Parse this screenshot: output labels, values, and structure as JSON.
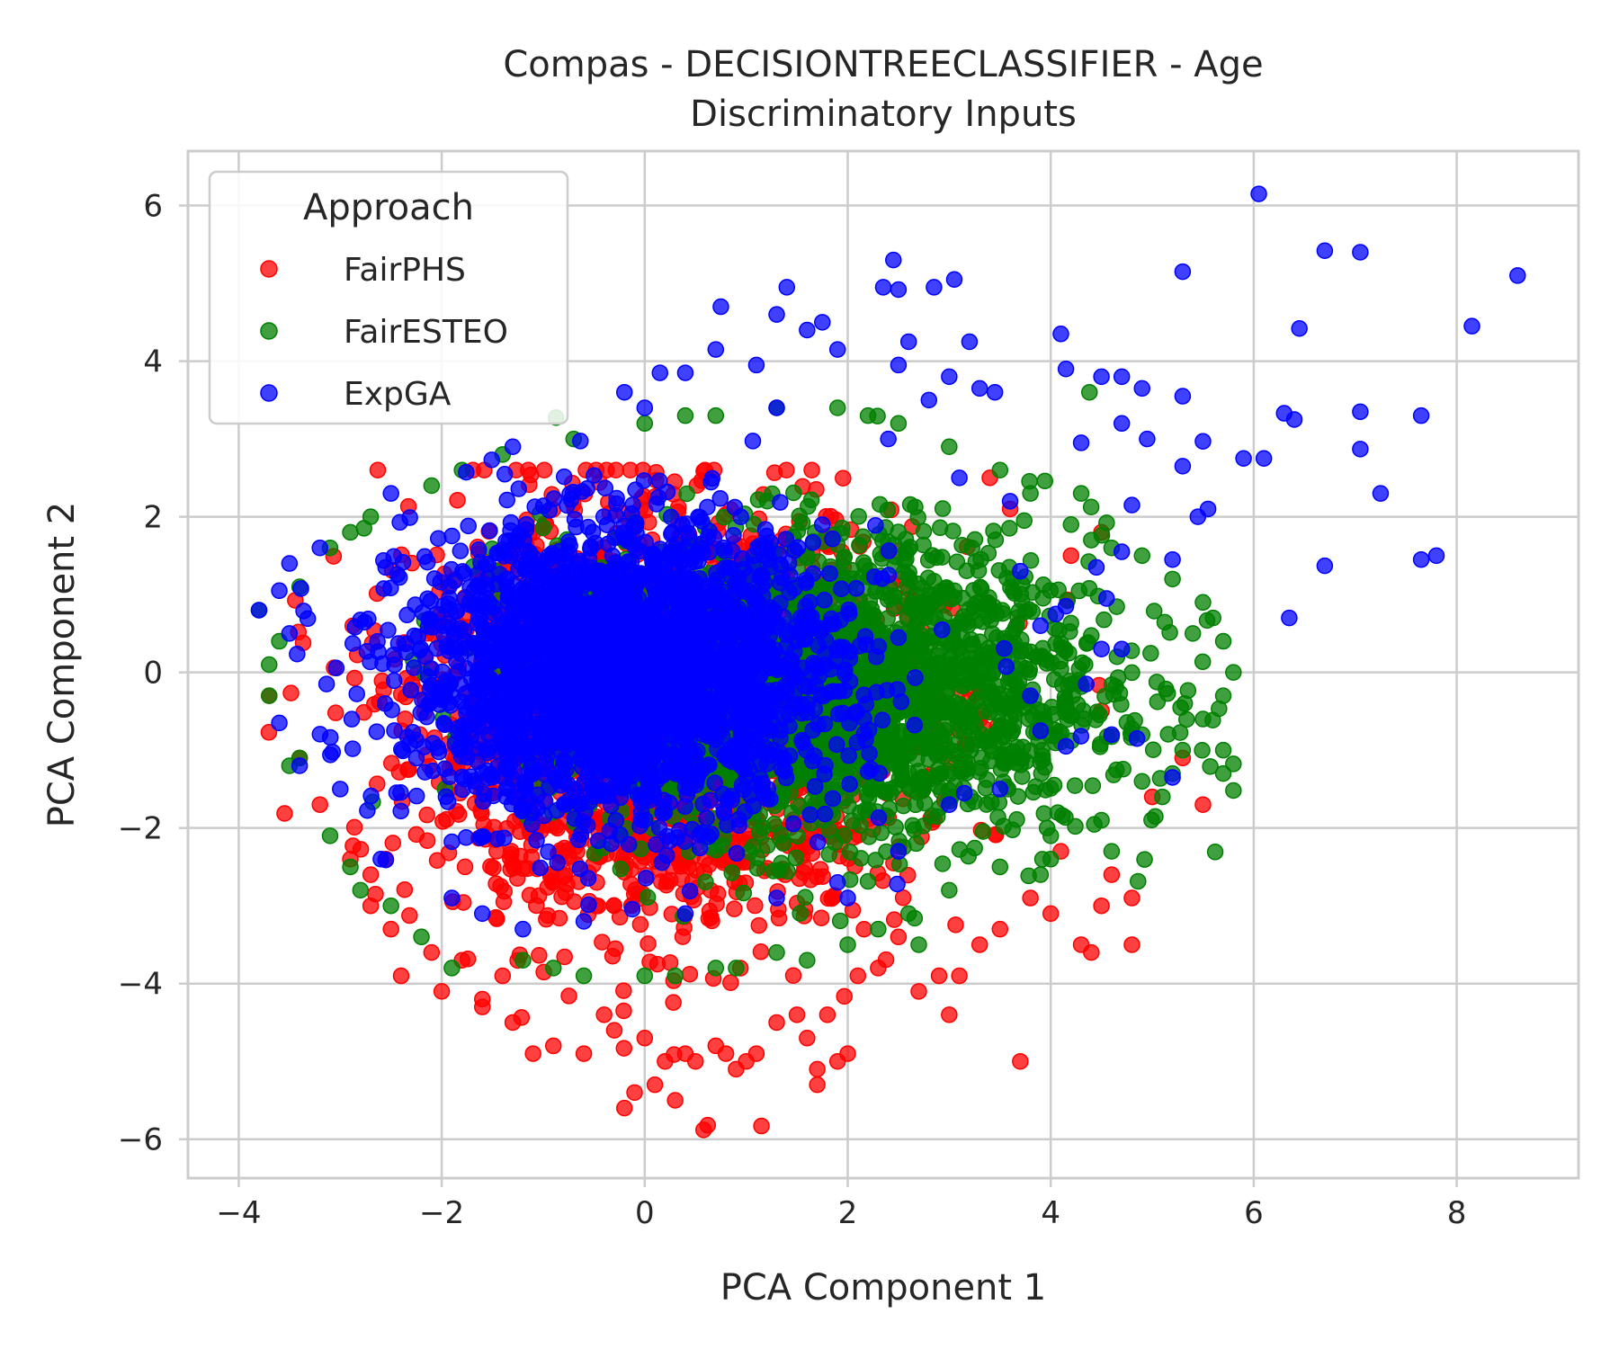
{
  "chart_data": {
    "type": "scatter",
    "title": "Compas - DECISIONTREECLASSIFIER - Age",
    "subtitle": "Discriminatory Inputs",
    "xlabel": "PCA Component 1",
    "ylabel": "PCA Component 2",
    "xlim": [
      -4.5,
      9.2
    ],
    "ylim": [
      -6.5,
      6.7
    ],
    "xticks": [
      -4,
      -2,
      0,
      2,
      4,
      6,
      8
    ],
    "yticks": [
      -6,
      -4,
      -2,
      0,
      2,
      4,
      6
    ],
    "xtick_labels": [
      "−4",
      "−2",
      "0",
      "2",
      "4",
      "6",
      "8"
    ],
    "ytick_labels": [
      "−6",
      "−4",
      "−2",
      "0",
      "2",
      "4",
      "6"
    ],
    "grid": true,
    "legend": {
      "title": "Approach",
      "placement": "upper-left",
      "entries": [
        "FairPHS",
        "FairESTEO",
        "ExpGA"
      ]
    },
    "series": [
      {
        "name": "FairPHS",
        "color": "#ff0000",
        "cluster": {
          "center": [
            0.2,
            -0.6
          ],
          "spread": [
            1.6,
            1.7
          ],
          "bounds_x": [
            -3.8,
            5.6
          ],
          "bounds_y": [
            -5.9,
            2.6
          ]
        },
        "points": [
          [
            -3.7,
            -0.3
          ],
          [
            -3.4,
            -1.1
          ],
          [
            -3.2,
            -1.7
          ],
          [
            -2.9,
            -2.4
          ],
          [
            -2.7,
            -2.6
          ],
          [
            -2.7,
            -3.0
          ],
          [
            -2.5,
            -3.3
          ],
          [
            -2.4,
            -3.9
          ],
          [
            -2.1,
            -3.6
          ],
          [
            -2.0,
            -4.1
          ],
          [
            -1.8,
            -3.7
          ],
          [
            -1.6,
            -4.2
          ],
          [
            -1.4,
            -3.9
          ],
          [
            -1.3,
            -4.5
          ],
          [
            -1.1,
            -4.9
          ],
          [
            -0.9,
            -4.8
          ],
          [
            -0.6,
            -4.9
          ],
          [
            -0.4,
            -4.4
          ],
          [
            -0.3,
            -4.6
          ],
          [
            -0.2,
            -5.6
          ],
          [
            -0.1,
            -5.4
          ],
          [
            0.0,
            -4.7
          ],
          [
            0.1,
            -5.3
          ],
          [
            0.2,
            -5.0
          ],
          [
            0.3,
            -5.5
          ],
          [
            0.4,
            -4.9
          ],
          [
            0.5,
            -5.0
          ],
          [
            0.58,
            -5.88
          ],
          [
            0.62,
            -5.82
          ],
          [
            0.7,
            -4.8
          ],
          [
            0.8,
            -4.9
          ],
          [
            0.9,
            -5.1
          ],
          [
            1.1,
            -4.9
          ],
          [
            1.15,
            -5.83
          ],
          [
            1.3,
            -4.5
          ],
          [
            1.5,
            -4.4
          ],
          [
            1.6,
            -4.7
          ],
          [
            1.7,
            -5.3
          ],
          [
            1.8,
            -4.4
          ],
          [
            1.9,
            -5.0
          ],
          [
            2.0,
            -4.9
          ],
          [
            2.1,
            -3.9
          ],
          [
            2.3,
            -3.8
          ],
          [
            2.5,
            -3.4
          ],
          [
            2.7,
            -4.1
          ],
          [
            2.9,
            -3.9
          ],
          [
            3.0,
            -4.4
          ],
          [
            3.1,
            -3.9
          ],
          [
            3.3,
            -3.5
          ],
          [
            3.5,
            -3.3
          ],
          [
            3.7,
            -5.0
          ],
          [
            3.8,
            -2.9
          ],
          [
            4.0,
            -3.1
          ],
          [
            4.1,
            -2.3
          ],
          [
            4.3,
            -3.5
          ],
          [
            4.4,
            -3.6
          ],
          [
            4.5,
            -3.0
          ],
          [
            4.6,
            -2.6
          ],
          [
            4.8,
            -3.5
          ],
          [
            4.8,
            -2.9
          ],
          [
            5.0,
            -1.6
          ],
          [
            5.3,
            -1.1
          ],
          [
            5.5,
            -1.7
          ],
          [
            4.5,
            1.8
          ],
          [
            4.2,
            1.5
          ],
          [
            3.6,
            2.1
          ],
          [
            3.4,
            2.5
          ],
          [
            1.7,
            -5.1
          ],
          [
            1.0,
            -5.0
          ],
          [
            -1.6,
            -4.3
          ]
        ]
      },
      {
        "name": "FairESTEO",
        "color": "#008000",
        "cluster": {
          "center": [
            1.8,
            -0.2
          ],
          "spread": [
            1.8,
            1.3
          ],
          "bounds_x": [
            -3.8,
            5.8
          ],
          "bounds_y": [
            -4.0,
            3.6
          ]
        },
        "points": [
          [
            -3.8,
            0.8
          ],
          [
            -3.7,
            0.1
          ],
          [
            -3.7,
            -0.3
          ],
          [
            -3.4,
            -1.1
          ],
          [
            -3.1,
            -2.1
          ],
          [
            -2.9,
            -2.5
          ],
          [
            -2.5,
            -3.0
          ],
          [
            -2.2,
            -3.4
          ],
          [
            -1.9,
            -3.8
          ],
          [
            -1.2,
            -3.7
          ],
          [
            -0.6,
            -3.9
          ],
          [
            0.0,
            -3.9
          ],
          [
            0.7,
            -3.8
          ],
          [
            1.3,
            -3.6
          ],
          [
            2.0,
            -3.5
          ],
          [
            2.6,
            -3.1
          ],
          [
            3.0,
            -2.8
          ],
          [
            3.5,
            -2.5
          ],
          [
            4.0,
            -2.1
          ],
          [
            4.5,
            -1.9
          ],
          [
            4.9,
            -1.4
          ],
          [
            5.3,
            -1.0
          ],
          [
            5.5,
            -0.6
          ],
          [
            5.7,
            -0.3
          ],
          [
            5.8,
            0.0
          ],
          [
            5.7,
            0.4
          ],
          [
            5.6,
            0.7
          ],
          [
            5.5,
            0.9
          ],
          [
            5.2,
            1.2
          ],
          [
            4.9,
            1.5
          ],
          [
            4.4,
            1.7
          ],
          [
            4.2,
            1.9
          ],
          [
            4.3,
            2.3
          ],
          [
            3.5,
            2.6
          ],
          [
            3.0,
            2.9
          ],
          [
            2.5,
            3.2
          ],
          [
            1.9,
            3.4
          ],
          [
            1.3,
            3.4
          ],
          [
            0.7,
            3.3
          ],
          [
            0.0,
            3.2
          ],
          [
            -0.7,
            3.0
          ],
          [
            -1.4,
            2.8
          ],
          [
            -2.1,
            2.4
          ],
          [
            -2.7,
            2.0
          ],
          [
            -3.1,
            1.6
          ],
          [
            -3.4,
            1.1
          ],
          [
            5.7,
            -1.0
          ],
          [
            5.7,
            -1.3
          ],
          [
            5.2,
            -1.3
          ],
          [
            4.9,
            -0.8
          ],
          [
            4.6,
            -2.3
          ],
          [
            3.9,
            -2.6
          ],
          [
            2.7,
            -3.5
          ],
          [
            1.6,
            -3.7
          ],
          [
            0.3,
            -3.9
          ],
          [
            -0.9,
            -3.8
          ],
          [
            -2.8,
            -2.8
          ],
          [
            -3.5,
            -1.2
          ],
          [
            -3.6,
            0.4
          ],
          [
            -2.9,
            1.8
          ],
          [
            -1.8,
            2.6
          ],
          [
            0.4,
            3.3
          ],
          [
            2.2,
            3.3
          ],
          [
            3.8,
            2.3
          ],
          [
            4.6,
            1.6
          ],
          [
            5.4,
            0.5
          ],
          [
            5.1,
            -1.6
          ],
          [
            4.0,
            -2.4
          ],
          [
            2.3,
            -3.3
          ],
          [
            0.9,
            -3.8
          ]
        ]
      },
      {
        "name": "ExpGA",
        "color": "#0000ff",
        "cluster": {
          "center": [
            -0.2,
            0.0
          ],
          "spread": [
            1.4,
            1.2
          ],
          "bounds_x": [
            -3.8,
            5.2
          ],
          "bounds_y": [
            -3.5,
            3.8
          ]
        },
        "points": [
          [
            6.05,
            6.15
          ],
          [
            8.6,
            5.1
          ],
          [
            6.7,
            5.42
          ],
          [
            7.05,
            5.4
          ],
          [
            5.3,
            5.15
          ],
          [
            8.15,
            4.45
          ],
          [
            6.45,
            4.42
          ],
          [
            7.05,
            3.35
          ],
          [
            7.65,
            3.3
          ],
          [
            6.3,
            3.33
          ],
          [
            6.4,
            3.25
          ],
          [
            5.5,
            2.97
          ],
          [
            7.05,
            2.87
          ],
          [
            5.9,
            2.75
          ],
          [
            6.1,
            2.75
          ],
          [
            5.3,
            2.65
          ],
          [
            7.25,
            2.3
          ],
          [
            5.55,
            2.1
          ],
          [
            5.45,
            2.0
          ],
          [
            7.65,
            1.45
          ],
          [
            7.8,
            1.5
          ],
          [
            5.2,
            1.45
          ],
          [
            6.7,
            1.37
          ],
          [
            6.35,
            0.7
          ],
          [
            5.3,
            3.55
          ],
          [
            4.9,
            3.65
          ],
          [
            4.7,
            3.8
          ],
          [
            4.5,
            3.8
          ],
          [
            4.15,
            3.9
          ],
          [
            4.1,
            4.35
          ],
          [
            3.45,
            3.6
          ],
          [
            3.3,
            3.65
          ],
          [
            3.2,
            4.25
          ],
          [
            3.0,
            3.8
          ],
          [
            2.85,
            4.95
          ],
          [
            3.05,
            5.05
          ],
          [
            2.45,
            5.3
          ],
          [
            2.35,
            4.95
          ],
          [
            2.5,
            4.92
          ],
          [
            2.6,
            4.25
          ],
          [
            2.5,
            3.95
          ],
          [
            1.4,
            4.95
          ],
          [
            1.3,
            4.6
          ],
          [
            1.6,
            4.4
          ],
          [
            1.75,
            4.5
          ],
          [
            1.9,
            4.15
          ],
          [
            0.75,
            4.7
          ],
          [
            0.7,
            4.15
          ],
          [
            1.1,
            3.95
          ],
          [
            0.15,
            3.85
          ],
          [
            0.4,
            3.85
          ],
          [
            4.3,
            2.95
          ],
          [
            4.7,
            3.2
          ],
          [
            4.95,
            3.0
          ],
          [
            4.8,
            2.15
          ],
          [
            4.7,
            1.55
          ],
          [
            4.55,
            0.95
          ],
          [
            4.45,
            1.35
          ],
          [
            4.15,
            0.85
          ],
          [
            4.05,
            0.75
          ],
          [
            4.7,
            0.3
          ],
          [
            4.5,
            0.3
          ],
          [
            4.35,
            -0.15
          ],
          [
            4.6,
            -0.8
          ],
          [
            4.85,
            -0.85
          ],
          [
            4.15,
            -0.95
          ],
          [
            3.9,
            -0.75
          ],
          [
            5.2,
            -1.35
          ],
          [
            -3.8,
            0.8
          ],
          [
            -3.6,
            -0.65
          ],
          [
            -3.5,
            1.4
          ],
          [
            -3.6,
            1.05
          ],
          [
            -3.4,
            -1.2
          ],
          [
            -2.6,
            -2.4
          ],
          [
            -1.9,
            -2.9
          ],
          [
            -1.2,
            -3.3
          ],
          [
            -0.6,
            -3.2
          ],
          [
            0.4,
            -3.1
          ],
          [
            1.3,
            -2.9
          ],
          [
            1.9,
            -2.7
          ],
          [
            2.5,
            -2.3
          ],
          [
            3.0,
            -1.7
          ],
          [
            3.5,
            -1.5
          ],
          [
            3.8,
            -0.3
          ],
          [
            3.9,
            0.6
          ],
          [
            3.7,
            1.3
          ],
          [
            3.1,
            2.5
          ],
          [
            2.4,
            3.0
          ],
          [
            1.3,
            3.4
          ],
          [
            0.0,
            3.4
          ],
          [
            -1.3,
            2.9
          ],
          [
            -2.5,
            2.3
          ],
          [
            -3.2,
            1.6
          ],
          [
            -3.5,
            0.5
          ],
          [
            -3.0,
            -1.5
          ],
          [
            -0.2,
            3.6
          ],
          [
            2.8,
            3.5
          ],
          [
            3.6,
            2.2
          ],
          [
            2.0,
            -2.9
          ],
          [
            -1.6,
            -3.1
          ]
        ]
      }
    ]
  }
}
